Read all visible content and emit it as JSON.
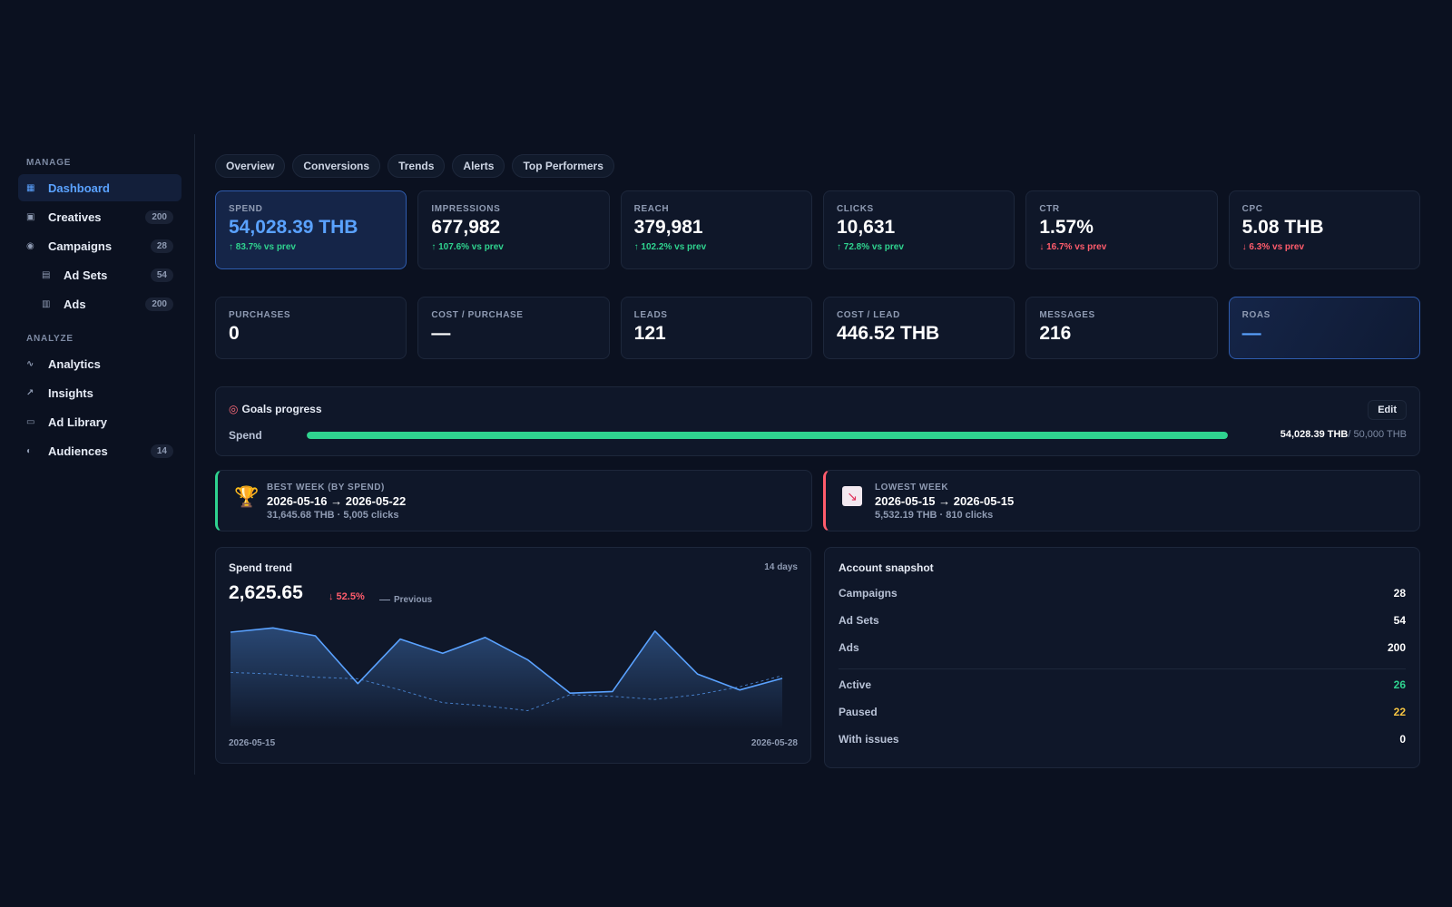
{
  "sidebar": {
    "sections": [
      {
        "title": "MANAGE"
      },
      {
        "title": "ANALYZE"
      }
    ],
    "items": [
      {
        "label": "Dashboard",
        "icon": "grid-icon",
        "glyph": "▦",
        "badge": ""
      },
      {
        "label": "Creatives",
        "icon": "image-icon",
        "glyph": "▣",
        "badge": "200"
      },
      {
        "label": "Campaigns",
        "icon": "target-icon",
        "glyph": "◉",
        "badge": "28"
      },
      {
        "label": "Ad Sets",
        "icon": "layers-icon",
        "glyph": "▤",
        "badge": "54"
      },
      {
        "label": "Ads",
        "icon": "table-icon",
        "glyph": "▥",
        "badge": "200"
      },
      {
        "label": "Analytics",
        "icon": "wave-icon",
        "glyph": "∿",
        "badge": ""
      },
      {
        "label": "Insights",
        "icon": "arrow-up-right-icon",
        "glyph": "↗",
        "badge": ""
      },
      {
        "label": "Ad Library",
        "icon": "monitor-icon",
        "glyph": "▭",
        "badge": ""
      },
      {
        "label": "Audiences",
        "icon": "half-circle-icon",
        "glyph": "◐",
        "badge": "14"
      }
    ]
  },
  "tabs": [
    "Overview",
    "Conversions",
    "Trends",
    "Alerts",
    "Top Performers"
  ],
  "kpis_row1": [
    {
      "label": "SPEND",
      "value": "54,028.39 THB",
      "delta": "↑ 83.7% vs prev",
      "dir": "up"
    },
    {
      "label": "IMPRESSIONS",
      "value": "677,982",
      "delta": "↑ 107.6% vs prev",
      "dir": "up"
    },
    {
      "label": "REACH",
      "value": "379,981",
      "delta": "↑ 102.2% vs prev",
      "dir": "up"
    },
    {
      "label": "CLICKS",
      "value": "10,631",
      "delta": "↑ 72.8% vs prev",
      "dir": "up"
    },
    {
      "label": "CTR",
      "value": "1.57%",
      "delta": "↓ 16.7% vs prev",
      "dir": "down"
    },
    {
      "label": "CPC",
      "value": "5.08 THB",
      "delta": "↓ 6.3% vs prev",
      "dir": "down"
    }
  ],
  "kpis_row2": [
    {
      "label": "PURCHASES",
      "value": "0"
    },
    {
      "label": "COST / PURCHASE",
      "value": "—"
    },
    {
      "label": "LEADS",
      "value": "121"
    },
    {
      "label": "COST / LEAD",
      "value": "446.52 THB"
    },
    {
      "label": "MESSAGES",
      "value": "216"
    },
    {
      "label": "ROAS",
      "value": "—"
    }
  ],
  "goals": {
    "icon_glyph": "◎",
    "title": "Goals progress",
    "edit_label": "Edit",
    "goal_label": "Spend",
    "current": "54,028.39 THB",
    "target": "/ 50,000 THB",
    "progress_percent": 100,
    "bar_color": "#2fd38f"
  },
  "best_week": {
    "icon_glyph": "🏆",
    "label": "BEST WEEK (BY SPEND)",
    "range": "2026-05-16 → 2026-05-22",
    "sub": "31,645.68 THB · 5,005 clicks"
  },
  "lowest_week": {
    "icon_glyph": "📉",
    "label": "LOWEST WEEK",
    "range": "2026-05-15 → 2026-05-15",
    "sub": "5,532.19 THB · 810 clicks"
  },
  "spend_trend": {
    "title": "Spend trend",
    "period": "14 days",
    "value": "2,625.65",
    "delta": "↓ 52.5%",
    "legend_previous": "Previous",
    "x_start": "2026-05-15",
    "x_end": "2026-05-28"
  },
  "chart_data": {
    "type": "line",
    "x": [
      "2026-05-15",
      "2026-05-16",
      "2026-05-17",
      "2026-05-18",
      "2026-05-19",
      "2026-05-20",
      "2026-05-21",
      "2026-05-22",
      "2026-05-23",
      "2026-05-24",
      "2026-05-25",
      "2026-05-26",
      "2026-05-27",
      "2026-05-28"
    ],
    "series": [
      {
        "name": "",
        "values": [
          5530,
          5800,
          5300,
          2300,
          5100,
          4200,
          5200,
          3800,
          1700,
          1800,
          5600,
          2900,
          1900,
          2626
        ],
        "color": "#5aa2ff",
        "style": "solid",
        "fill": true
      },
      {
        "name": "Previous",
        "values": [
          3000,
          2900,
          2700,
          2600,
          1900,
          1100,
          900,
          600,
          1600,
          1500,
          1300,
          1600,
          2100,
          2800
        ],
        "color": "#5aa2ff",
        "style": "dashed",
        "fill": false
      }
    ],
    "ylim": [
      0,
      6500
    ],
    "grid": false,
    "legend": "top-left"
  },
  "snapshot": {
    "title": "Account snapshot",
    "rows": [
      {
        "label": "Campaigns",
        "value": "28"
      },
      {
        "label": "Ad Sets",
        "value": "54"
      },
      {
        "label": "Ads",
        "value": "200"
      },
      {
        "label": "Active",
        "value": "26"
      },
      {
        "label": "Paused",
        "value": "22"
      },
      {
        "label": "With issues",
        "value": "0"
      }
    ]
  }
}
